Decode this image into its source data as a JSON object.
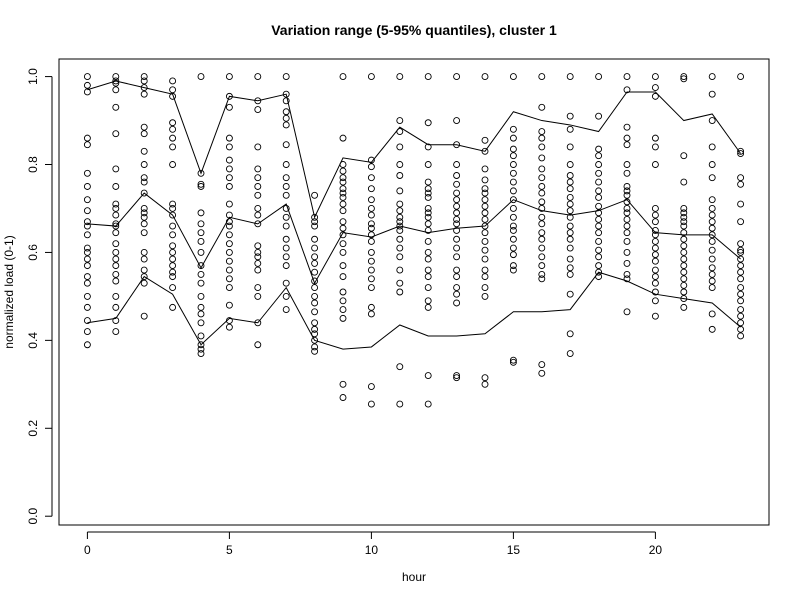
{
  "chart_data": {
    "type": "scatter",
    "title": "Variation range (5-95% quantiles), cluster 1",
    "xlabel": "hour",
    "ylabel": "normalized load (0-1)",
    "xlim": [
      -1,
      24
    ],
    "ylim": [
      -0.02,
      1.04
    ],
    "x_ticks": [
      0,
      5,
      10,
      15,
      20
    ],
    "y_ticks": [
      0.0,
      0.2,
      0.4,
      0.6,
      0.8,
      1.0
    ],
    "grid": false,
    "marker": "open-circle",
    "points": [
      {
        "x": 0,
        "y": [
          1.0,
          0.98,
          0.965,
          0.86,
          0.845,
          0.78,
          0.75,
          0.72,
          0.695,
          0.67,
          0.66,
          0.64,
          0.61,
          0.6,
          0.585,
          0.57,
          0.545,
          0.53,
          0.5,
          0.475,
          0.445,
          0.42,
          0.39
        ]
      },
      {
        "x": 1,
        "y": [
          1.0,
          0.99,
          0.985,
          0.97,
          0.93,
          0.87,
          0.79,
          0.75,
          0.71,
          0.7,
          0.685,
          0.665,
          0.66,
          0.645,
          0.62,
          0.6,
          0.585,
          0.57,
          0.55,
          0.535,
          0.5,
          0.475,
          0.445,
          0.42
        ]
      },
      {
        "x": 2,
        "y": [
          1.0,
          0.99,
          0.975,
          0.96,
          0.885,
          0.87,
          0.83,
          0.8,
          0.77,
          0.76,
          0.735,
          0.7,
          0.69,
          0.68,
          0.665,
          0.645,
          0.6,
          0.585,
          0.56,
          0.545,
          0.53,
          0.455
        ]
      },
      {
        "x": 3,
        "y": [
          0.99,
          0.97,
          0.955,
          0.895,
          0.88,
          0.86,
          0.84,
          0.8,
          0.71,
          0.7,
          0.685,
          0.66,
          0.64,
          0.615,
          0.6,
          0.585,
          0.57,
          0.555,
          0.545,
          0.52,
          0.475
        ]
      },
      {
        "x": 4,
        "y": [
          1.0,
          0.78,
          0.755,
          0.75,
          0.69,
          0.665,
          0.645,
          0.625,
          0.6,
          0.57,
          0.55,
          0.53,
          0.5,
          0.475,
          0.46,
          0.44,
          0.41,
          0.39,
          0.38,
          0.37
        ]
      },
      {
        "x": 5,
        "y": [
          1.0,
          0.955,
          0.93,
          0.86,
          0.84,
          0.81,
          0.79,
          0.77,
          0.75,
          0.71,
          0.685,
          0.67,
          0.66,
          0.64,
          0.62,
          0.6,
          0.58,
          0.56,
          0.54,
          0.52,
          0.48,
          0.445,
          0.43
        ]
      },
      {
        "x": 6,
        "y": [
          1.0,
          0.945,
          0.925,
          0.84,
          0.79,
          0.77,
          0.75,
          0.73,
          0.7,
          0.685,
          0.665,
          0.615,
          0.6,
          0.59,
          0.575,
          0.56,
          0.52,
          0.5,
          0.44,
          0.39
        ]
      },
      {
        "x": 7,
        "y": [
          1.0,
          0.96,
          0.945,
          0.92,
          0.905,
          0.89,
          0.845,
          0.8,
          0.77,
          0.75,
          0.73,
          0.7,
          0.68,
          0.66,
          0.63,
          0.61,
          0.59,
          0.57,
          0.53,
          0.5,
          0.47
        ]
      },
      {
        "x": 8,
        "y": [
          0.73,
          0.68,
          0.67,
          0.66,
          0.63,
          0.61,
          0.59,
          0.575,
          0.555,
          0.535,
          0.52,
          0.5,
          0.485,
          0.465,
          0.44,
          0.425,
          0.415,
          0.4,
          0.385,
          0.375
        ]
      },
      {
        "x": 9,
        "y": [
          1.0,
          0.86,
          0.8,
          0.785,
          0.77,
          0.76,
          0.745,
          0.735,
          0.725,
          0.71,
          0.695,
          0.67,
          0.655,
          0.64,
          0.62,
          0.6,
          0.57,
          0.545,
          0.51,
          0.49,
          0.47,
          0.45,
          0.3,
          0.27
        ]
      },
      {
        "x": 10,
        "y": [
          1.0,
          0.81,
          0.795,
          0.77,
          0.745,
          0.72,
          0.7,
          0.685,
          0.665,
          0.655,
          0.64,
          0.625,
          0.6,
          0.58,
          0.56,
          0.54,
          0.52,
          0.475,
          0.46,
          0.295,
          0.255
        ]
      },
      {
        "x": 11,
        "y": [
          1.0,
          0.9,
          0.875,
          0.84,
          0.8,
          0.775,
          0.74,
          0.71,
          0.695,
          0.68,
          0.67,
          0.66,
          0.65,
          0.63,
          0.61,
          0.59,
          0.56,
          0.53,
          0.51,
          0.34,
          0.255
        ]
      },
      {
        "x": 12,
        "y": [
          1.0,
          0.895,
          0.84,
          0.8,
          0.76,
          0.745,
          0.735,
          0.725,
          0.7,
          0.69,
          0.68,
          0.665,
          0.65,
          0.625,
          0.6,
          0.585,
          0.56,
          0.545,
          0.52,
          0.49,
          0.475,
          0.32,
          0.255
        ]
      },
      {
        "x": 13,
        "y": [
          1.0,
          0.9,
          0.845,
          0.8,
          0.775,
          0.755,
          0.735,
          0.72,
          0.705,
          0.69,
          0.675,
          0.665,
          0.65,
          0.63,
          0.61,
          0.59,
          0.56,
          0.545,
          0.52,
          0.505,
          0.485,
          0.32,
          0.315
        ]
      },
      {
        "x": 14,
        "y": [
          1.0,
          0.855,
          0.83,
          0.79,
          0.765,
          0.745,
          0.735,
          0.72,
          0.705,
          0.69,
          0.675,
          0.66,
          0.645,
          0.625,
          0.605,
          0.585,
          0.56,
          0.545,
          0.52,
          0.5,
          0.315,
          0.3
        ]
      },
      {
        "x": 15,
        "y": [
          1.0,
          0.88,
          0.86,
          0.835,
          0.82,
          0.8,
          0.78,
          0.76,
          0.74,
          0.72,
          0.7,
          0.68,
          0.66,
          0.65,
          0.63,
          0.61,
          0.595,
          0.57,
          0.56,
          0.355,
          0.35
        ]
      },
      {
        "x": 16,
        "y": [
          1.0,
          0.93,
          0.875,
          0.86,
          0.84,
          0.815,
          0.79,
          0.77,
          0.75,
          0.735,
          0.715,
          0.7,
          0.68,
          0.665,
          0.645,
          0.63,
          0.61,
          0.59,
          0.57,
          0.55,
          0.54,
          0.345,
          0.325
        ]
      },
      {
        "x": 17,
        "y": [
          1.0,
          0.91,
          0.88,
          0.84,
          0.8,
          0.775,
          0.76,
          0.745,
          0.725,
          0.71,
          0.695,
          0.68,
          0.66,
          0.645,
          0.63,
          0.61,
          0.585,
          0.565,
          0.55,
          0.505,
          0.415,
          0.37
        ]
      },
      {
        "x": 18,
        "y": [
          1.0,
          0.91,
          0.835,
          0.82,
          0.8,
          0.78,
          0.76,
          0.74,
          0.725,
          0.705,
          0.69,
          0.675,
          0.66,
          0.645,
          0.625,
          0.605,
          0.59,
          0.57,
          0.555,
          0.545
        ]
      },
      {
        "x": 19,
        "y": [
          1.0,
          0.97,
          0.885,
          0.86,
          0.845,
          0.8,
          0.78,
          0.75,
          0.74,
          0.73,
          0.715,
          0.7,
          0.69,
          0.675,
          0.66,
          0.645,
          0.625,
          0.6,
          0.575,
          0.55,
          0.54,
          0.465
        ]
      },
      {
        "x": 20,
        "y": [
          1.0,
          0.975,
          0.955,
          0.86,
          0.84,
          0.8,
          0.7,
          0.685,
          0.67,
          0.65,
          0.64,
          0.625,
          0.61,
          0.595,
          0.58,
          0.56,
          0.545,
          0.53,
          0.51,
          0.49,
          0.455
        ]
      },
      {
        "x": 21,
        "y": [
          1.0,
          0.995,
          0.82,
          0.76,
          0.7,
          0.69,
          0.68,
          0.67,
          0.66,
          0.645,
          0.63,
          0.615,
          0.6,
          0.585,
          0.57,
          0.555,
          0.54,
          0.525,
          0.51,
          0.495,
          0.475
        ]
      },
      {
        "x": 22,
        "y": [
          1.0,
          0.96,
          0.9,
          0.84,
          0.8,
          0.77,
          0.72,
          0.7,
          0.685,
          0.67,
          0.655,
          0.64,
          0.625,
          0.605,
          0.585,
          0.565,
          0.55,
          0.535,
          0.52,
          0.46,
          0.425
        ]
      },
      {
        "x": 23,
        "y": [
          1.0,
          0.83,
          0.825,
          0.77,
          0.755,
          0.71,
          0.67,
          0.62,
          0.605,
          0.6,
          0.585,
          0.57,
          0.555,
          0.54,
          0.52,
          0.505,
          0.49,
          0.47,
          0.455,
          0.44,
          0.425,
          0.41
        ]
      }
    ],
    "series": [
      {
        "values": [
          0.97,
          0.99,
          0.975,
          0.96,
          0.78,
          0.955,
          0.945,
          0.96,
          0.68,
          0.815,
          0.805,
          0.885,
          0.845,
          0.845,
          0.83,
          0.92,
          0.9,
          0.89,
          0.875,
          0.965,
          0.965,
          0.9,
          0.915,
          0.825
        ]
      },
      {
        "values": [
          0.665,
          0.66,
          0.735,
          0.685,
          0.565,
          0.68,
          0.665,
          0.71,
          0.53,
          0.645,
          0.635,
          0.66,
          0.645,
          0.655,
          0.66,
          0.72,
          0.695,
          0.685,
          0.695,
          0.72,
          0.645,
          0.64,
          0.64,
          0.585
        ]
      },
      {
        "values": [
          0.44,
          0.45,
          0.545,
          0.505,
          0.39,
          0.45,
          0.44,
          0.52,
          0.4,
          0.38,
          0.385,
          0.435,
          0.41,
          0.41,
          0.415,
          0.465,
          0.465,
          0.47,
          0.555,
          0.535,
          0.505,
          0.495,
          0.485,
          0.43
        ]
      }
    ]
  }
}
